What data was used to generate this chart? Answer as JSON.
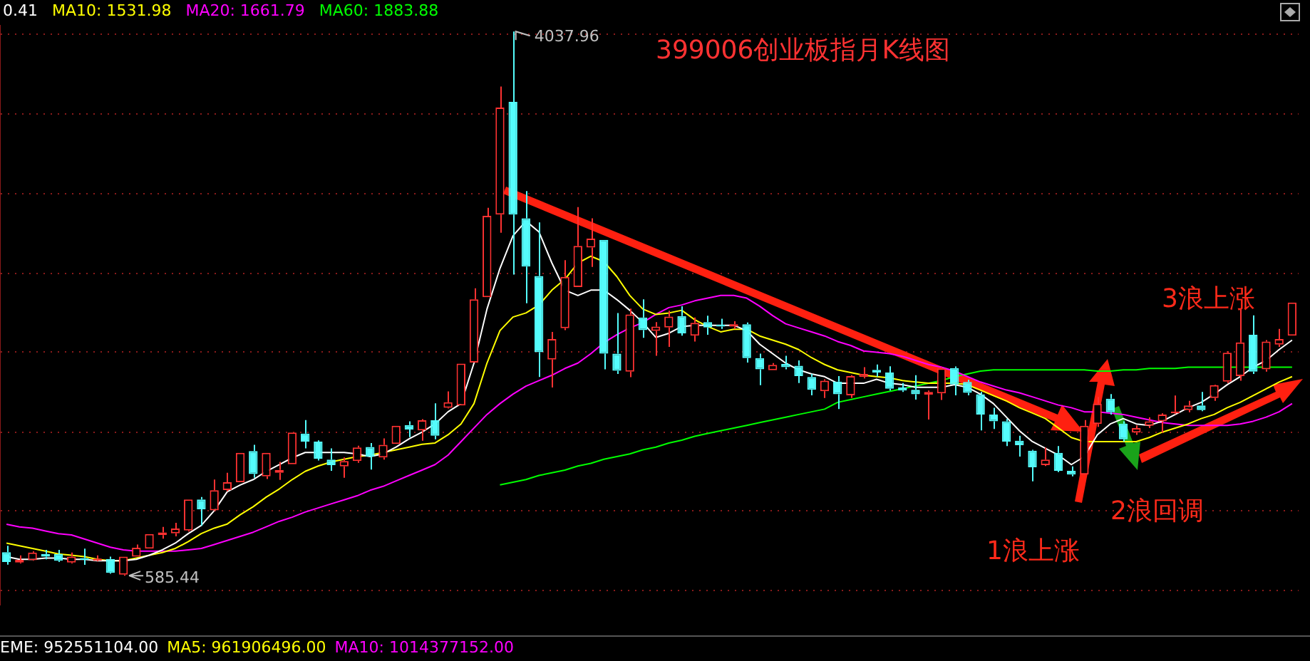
{
  "chart_data": {
    "type": "candlestick",
    "title": "399006创业板指月K线图",
    "categories": [
      null,
      null,
      null,
      null,
      null,
      null,
      null,
      null,
      null,
      null,
      null,
      null,
      null,
      null,
      null,
      null,
      null,
      null,
      null,
      null,
      null,
      null,
      null,
      null,
      null,
      null,
      null,
      null,
      null,
      null,
      null,
      null,
      null,
      null,
      null,
      null,
      null,
      null,
      null,
      null,
      null,
      null,
      null,
      null,
      null,
      null,
      null,
      null,
      null,
      null,
      null,
      null,
      null,
      null,
      null,
      null,
      null,
      null,
      null,
      null,
      null,
      null,
      null,
      null,
      null,
      null,
      null,
      null,
      null,
      null,
      null,
      null,
      null,
      null,
      null,
      null,
      null,
      null,
      null,
      null,
      null,
      null,
      null,
      null,
      null,
      null,
      null,
      null,
      null,
      null,
      null,
      null,
      null,
      null,
      null,
      null,
      null,
      null,
      null,
      null
    ],
    "ohlc": [
      [
        734,
        775,
        655,
        672
      ],
      [
        669,
        714,
        663,
        686
      ],
      [
        683,
        740,
        680,
        732
      ],
      [
        723,
        749,
        689,
        706
      ],
      [
        723,
        749,
        672,
        680
      ],
      [
        669,
        732,
        663,
        706
      ],
      [
        697,
        757,
        654,
        686
      ],
      [
        680,
        714,
        676,
        693
      ],
      [
        691,
        706,
        597,
        603
      ],
      [
        592,
        706,
        585.44,
        706
      ],
      [
        706,
        783,
        706,
        763
      ],
      [
        757,
        849,
        757,
        849
      ],
      [
        843,
        895,
        820,
        860
      ],
      [
        854,
        921,
        835,
        884
      ],
      [
        872,
        1069,
        865,
        1069
      ],
      [
        1069,
        1084,
        901,
        1006
      ],
      [
        1000,
        1195,
        995,
        1127
      ],
      [
        1129,
        1238,
        1121,
        1178
      ],
      [
        1178,
        1365,
        1178,
        1365
      ],
      [
        1376,
        1416,
        1207,
        1230
      ],
      [
        1215,
        1365,
        1198,
        1365
      ],
      [
        1238,
        1307,
        1193,
        1256
      ],
      [
        1292,
        1493,
        1292,
        1493
      ],
      [
        1487,
        1573,
        1393,
        1436
      ],
      [
        1436,
        1444,
        1316,
        1327
      ],
      [
        1322,
        1393,
        1250,
        1287
      ],
      [
        1279,
        1335,
        1207,
        1313
      ],
      [
        1313,
        1410,
        1301,
        1399
      ],
      [
        1402,
        1427,
        1258,
        1341
      ],
      [
        1335,
        1456,
        1322,
        1416
      ],
      [
        1421,
        1536,
        1421,
        1536
      ],
      [
        1541,
        1565,
        1464,
        1513
      ],
      [
        1507,
        1578,
        1442,
        1571
      ],
      [
        1571,
        1679,
        1450,
        1473
      ],
      [
        1651,
        1754,
        1646,
        1685
      ],
      [
        1665,
        1931,
        1665,
        1931
      ],
      [
        1937,
        2409,
        1937,
        2338
      ],
      [
        2352,
        2919,
        2352,
        2868
      ],
      [
        2876,
        3689,
        2761,
        3555
      ],
      [
        3591,
        4037.96,
        2495,
        2876
      ],
      [
        2853,
        3025,
        2314,
        2546
      ],
      [
        2486,
        2827,
        1846,
        2003
      ],
      [
        1957,
        2132,
        1779,
        2086
      ],
      [
        2155,
        2587,
        2143,
        2481
      ],
      [
        2417,
        2924,
        2417,
        2678
      ],
      [
        2667,
        2853,
        2544,
        2724
      ],
      [
        2716,
        2716,
        1894,
        1994
      ],
      [
        1994,
        2252,
        1865,
        1885
      ],
      [
        1880,
        2280,
        1845,
        2243
      ],
      [
        2223,
        2338,
        2095,
        2143
      ],
      [
        2138,
        2194,
        1980,
        2166
      ],
      [
        2160,
        2266,
        2037,
        2229
      ],
      [
        2232,
        2295,
        2108,
        2123
      ],
      [
        2108,
        2223,
        2071,
        2189
      ],
      [
        2194,
        2235,
        2114,
        2160
      ],
      [
        2177,
        2215,
        2151,
        2166
      ],
      [
        2166,
        2200,
        2151,
        2180
      ],
      [
        2180,
        2192,
        1937,
        1966
      ],
      [
        1966,
        1994,
        1794,
        1894
      ],
      [
        1889,
        1934,
        1889,
        1923
      ],
      [
        1928,
        1980,
        1894,
        1908
      ],
      [
        1917,
        1951,
        1808,
        1851
      ],
      [
        1846,
        1865,
        1730,
        1765
      ],
      [
        1756,
        1831,
        1713,
        1822
      ],
      [
        1816,
        1851,
        1642,
        1736
      ],
      [
        1730,
        1857,
        1713,
        1851
      ],
      [
        1846,
        1908,
        1837,
        1865
      ],
      [
        1891,
        1925,
        1848,
        1874
      ],
      [
        1874,
        1914,
        1760,
        1771
      ],
      [
        1779,
        1808,
        1751,
        1760
      ],
      [
        1765,
        1857,
        1702,
        1736
      ],
      [
        1734,
        1760,
        1576,
        1751
      ],
      [
        1742,
        1908,
        1700,
        1900
      ],
      [
        1902,
        1913,
        1730,
        1799
      ],
      [
        1814,
        1828,
        1730,
        1745
      ],
      [
        1736,
        1751,
        1507,
        1608
      ],
      [
        1608,
        1651,
        1516,
        1565
      ],
      [
        1565,
        1579,
        1407,
        1436
      ],
      [
        1442,
        1473,
        1341,
        1413
      ],
      [
        1378,
        1384,
        1184,
        1273
      ],
      [
        1287,
        1399,
        1281,
        1322
      ],
      [
        1365,
        1408,
        1243,
        1250
      ],
      [
        1250,
        1279,
        1215,
        1227
      ],
      [
        1227,
        1573,
        1227,
        1536
      ],
      [
        1548,
        1719,
        1530,
        1676
      ],
      [
        1708,
        1737,
        1608,
        1622
      ],
      [
        1550,
        1565,
        1436,
        1450
      ],
      [
        1493,
        1539,
        1479,
        1522
      ],
      [
        1536,
        1590,
        1522,
        1565
      ],
      [
        1565,
        1616,
        1493,
        1608
      ],
      [
        1616,
        1728,
        1610,
        1627
      ],
      [
        1636,
        1694,
        1622,
        1665
      ],
      [
        1665,
        1751,
        1629,
        1636
      ],
      [
        1713,
        1797,
        1694,
        1794
      ],
      [
        1816,
        2009,
        1808,
        2000
      ],
      [
        1851,
        2280,
        1822,
        2065
      ],
      [
        2114,
        2237,
        1865,
        1880
      ],
      [
        1894,
        2080,
        1880,
        2071
      ],
      [
        2052,
        2151,
        2037,
        2086
      ],
      [
        2108,
        2318,
        2108,
        2318
      ]
    ],
    "colors": [
      "#54fcfc",
      "#ff3232",
      "#ff3232",
      "#54fcfc",
      "#54fcfc",
      "#ff3232",
      "#54fcfc",
      "#ff3232",
      "#54fcfc",
      "#ff3232",
      "#ff3232",
      "#ff3232",
      "#ff3232",
      "#ff3232",
      "#ff3232",
      "#54fcfc",
      "#ff3232",
      "#ff3232",
      "#ff3232",
      "#54fcfc",
      "#ff3232",
      "#ff3232",
      "#ff3232",
      "#54fcfc",
      "#54fcfc",
      "#54fcfc",
      "#ff3232",
      "#ff3232",
      "#54fcfc",
      "#ff3232",
      "#ff3232",
      "#54fcfc",
      "#ff3232",
      "#54fcfc",
      "#ff3232",
      "#ff3232",
      "#ff3232",
      "#ff3232",
      "#ff3232",
      "#54fcfc",
      "#54fcfc",
      "#54fcfc",
      "#ff3232",
      "#ff3232",
      "#ff3232",
      "#ff3232",
      "#54fcfc",
      "#54fcfc",
      "#ff3232",
      "#54fcfc",
      "#ff3232",
      "#ff3232",
      "#54fcfc",
      "#ff3232",
      "#54fcfc",
      "#54fcfc",
      "#ff3232",
      "#54fcfc",
      "#54fcfc",
      "#ff3232",
      "#54fcfc",
      "#54fcfc",
      "#54fcfc",
      "#ff3232",
      "#54fcfc",
      "#ff3232",
      "#ff3232",
      "#54fcfc",
      "#54fcfc",
      "#54fcfc",
      "#54fcfc",
      "#ff3232",
      "#ff3232",
      "#54fcfc",
      "#54fcfc",
      "#54fcfc",
      "#54fcfc",
      "#54fcfc",
      "#54fcfc",
      "#54fcfc",
      "#ff3232",
      "#54fcfc",
      "#54fcfc",
      "#ff3232",
      "#ff3232",
      "#54fcfc",
      "#54fcfc",
      "#ff3232",
      "#ff3232",
      "#ff3232",
      "#ff3232",
      "#ff3232",
      "#54fcfc",
      "#ff3232",
      "#ff3232",
      "#ff3232",
      "#54fcfc",
      "#ff3232",
      "#ff3232",
      "#ff3232"
    ],
    "series": [
      {
        "name": "0.41",
        "type": "line",
        "color": "#ffffff",
        "values": [
          706,
          689,
          689,
          697,
          697,
          689,
          689,
          680,
          680,
          680,
          689,
          715,
          749,
          792,
          852,
          904,
          998,
          1118,
          1161,
          1195,
          1247,
          1290,
          1333,
          1367,
          1367,
          1367,
          1367,
          1358,
          1341,
          1358,
          1401,
          1453,
          1496,
          1548,
          1625,
          1677,
          1934,
          2277,
          2535,
          2741,
          2835,
          2767,
          2569,
          2397,
          2363,
          2397,
          2397,
          2337,
          2269,
          2191,
          2097,
          2123,
          2166,
          2174,
          2174,
          2174,
          2174,
          2140,
          2054,
          1994,
          1934,
          1891,
          1865,
          1848,
          1806,
          1806,
          1806,
          1831,
          1806,
          1797,
          1780,
          1780,
          1780,
          1797,
          1780,
          1737,
          1677,
          1591,
          1505,
          1436,
          1393,
          1350,
          1290,
          1341,
          1479,
          1548,
          1582,
          1548,
          1539,
          1565,
          1608,
          1651,
          1685,
          1737,
          1797,
          1848,
          1908,
          1951,
          2020,
          2080
        ]
      },
      {
        "name": "MA10: 1531.98",
        "type": "line",
        "color": "#ffff00",
        "values": [
          792,
          775,
          758,
          741,
          723,
          715,
          706,
          689,
          680,
          680,
          697,
          715,
          732,
          758,
          801,
          852,
          887,
          913,
          972,
          1023,
          1084,
          1135,
          1195,
          1247,
          1281,
          1307,
          1324,
          1341,
          1350,
          1367,
          1384,
          1401,
          1419,
          1427,
          1479,
          1548,
          1677,
          1934,
          2140,
          2226,
          2252,
          2303,
          2397,
          2466,
          2569,
          2612,
          2578,
          2483,
          2363,
          2277,
          2243,
          2252,
          2269,
          2209,
          2166,
          2132,
          2149,
          2149,
          2106,
          2080,
          2054,
          2020,
          1968,
          1925,
          1891,
          1874,
          1857,
          1848,
          1840,
          1823,
          1814,
          1806,
          1806,
          1806,
          1797,
          1763,
          1728,
          1694,
          1651,
          1617,
          1582,
          1522,
          1462,
          1436,
          1436,
          1436,
          1436,
          1436,
          1462,
          1496,
          1522,
          1548,
          1582,
          1608,
          1651,
          1685,
          1728,
          1771,
          1814,
          1848
        ]
      },
      {
        "name": "MA20: 1661.79",
        "type": "line",
        "color": "#ff00ff",
        "values": [
          912,
          895,
          887,
          869,
          852,
          844,
          818,
          792,
          766,
          749,
          741,
          741,
          741,
          741,
          749,
          758,
          783,
          809,
          835,
          861,
          895,
          930,
          956,
          989,
          1015,
          1041,
          1066,
          1092,
          1127,
          1152,
          1187,
          1221,
          1255,
          1290,
          1350,
          1436,
          1522,
          1608,
          1677,
          1737,
          1788,
          1823,
          1857,
          1900,
          1934,
          1994,
          2063,
          2114,
          2157,
          2191,
          2243,
          2286,
          2303,
          2329,
          2346,
          2363,
          2363,
          2346,
          2295,
          2235,
          2183,
          2157,
          2132,
          2106,
          2071,
          2046,
          2011,
          2003,
          1994,
          1977,
          1951,
          1925,
          1908,
          1883,
          1848,
          1814,
          1788,
          1763,
          1745,
          1720,
          1694,
          1668,
          1651,
          1625,
          1625,
          1617,
          1608,
          1591,
          1574,
          1557,
          1548,
          1539,
          1539,
          1539,
          1539,
          1548,
          1565,
          1591,
          1625,
          1677
        ]
      },
      {
        "name": "MA60: 1883.88",
        "type": "line",
        "color": "#00ff00",
        "values": [
          null,
          null,
          null,
          null,
          null,
          null,
          null,
          null,
          null,
          null,
          null,
          null,
          null,
          null,
          null,
          null,
          null,
          null,
          null,
          null,
          null,
          null,
          null,
          null,
          null,
          null,
          null,
          null,
          null,
          null,
          null,
          null,
          null,
          null,
          null,
          null,
          null,
          null,
          1161,
          1178,
          1195,
          1221,
          1238,
          1255,
          1281,
          1298,
          1324,
          1341,
          1358,
          1384,
          1401,
          1427,
          1445,
          1470,
          1488,
          1505,
          1522,
          1539,
          1557,
          1574,
          1591,
          1608,
          1625,
          1642,
          1685,
          1702,
          1720,
          1737,
          1754,
          1771,
          1788,
          1806,
          1823,
          1848,
          1865,
          1883,
          1891,
          1891,
          1891,
          1891,
          1891,
          1891,
          1891,
          1891,
          1883,
          1883,
          1891,
          1891,
          1900,
          1900,
          1900,
          1908,
          1908,
          1908,
          1908,
          1908,
          1908,
          1908,
          1908,
          1908
        ]
      }
    ],
    "ylim": [
      400,
      4075
    ],
    "yticks": [
      {
        "value": 491,
        "label": null
      },
      {
        "value": 998,
        "label": null
      },
      {
        "value": 1496,
        "label": null
      },
      {
        "value": 2003,
        "label": null
      },
      {
        "value": 2501,
        "label": null
      },
      {
        "value": 3008,
        "label": null
      },
      {
        "value": 3514,
        "label": null
      },
      {
        "value": 4021,
        "label": null
      }
    ],
    "grid": "y",
    "legend": "top left",
    "annotations": [
      "4037.96",
      "585.44",
      "1浪上涨",
      "2浪回调",
      "3浪上涨",
      "EME: 952551104.00",
      "MA5: 961906496.00",
      "MA10: 1014377152.00"
    ]
  }
}
